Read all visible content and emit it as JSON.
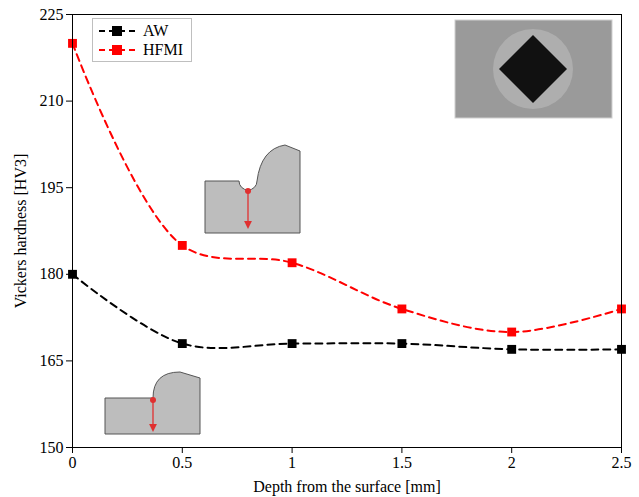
{
  "chart_data": {
    "type": "line",
    "x": [
      0,
      0.5,
      1,
      1.5,
      2,
      2.5
    ],
    "series": [
      {
        "name": "AW",
        "color": "#000000",
        "marker": "square",
        "line_style": "dashed",
        "values": [
          180,
          168,
          168,
          168,
          167,
          167
        ]
      },
      {
        "name": "HFMI",
        "color": "#ff0000",
        "marker": "square",
        "line_style": "dashed",
        "values": [
          220,
          185,
          182,
          174,
          170,
          174
        ]
      }
    ],
    "xlabel": "Depth from the surface [mm]",
    "ylabel": "Vickers hardness [HV3]",
    "xlim": [
      0,
      2.5
    ],
    "ylim": [
      150,
      225
    ],
    "xticks": [
      0,
      0.5,
      1,
      1.5,
      2,
      2.5
    ],
    "yticks": [
      150,
      165,
      180,
      195,
      210,
      225
    ],
    "grid": false,
    "legend": "upper left"
  }
}
